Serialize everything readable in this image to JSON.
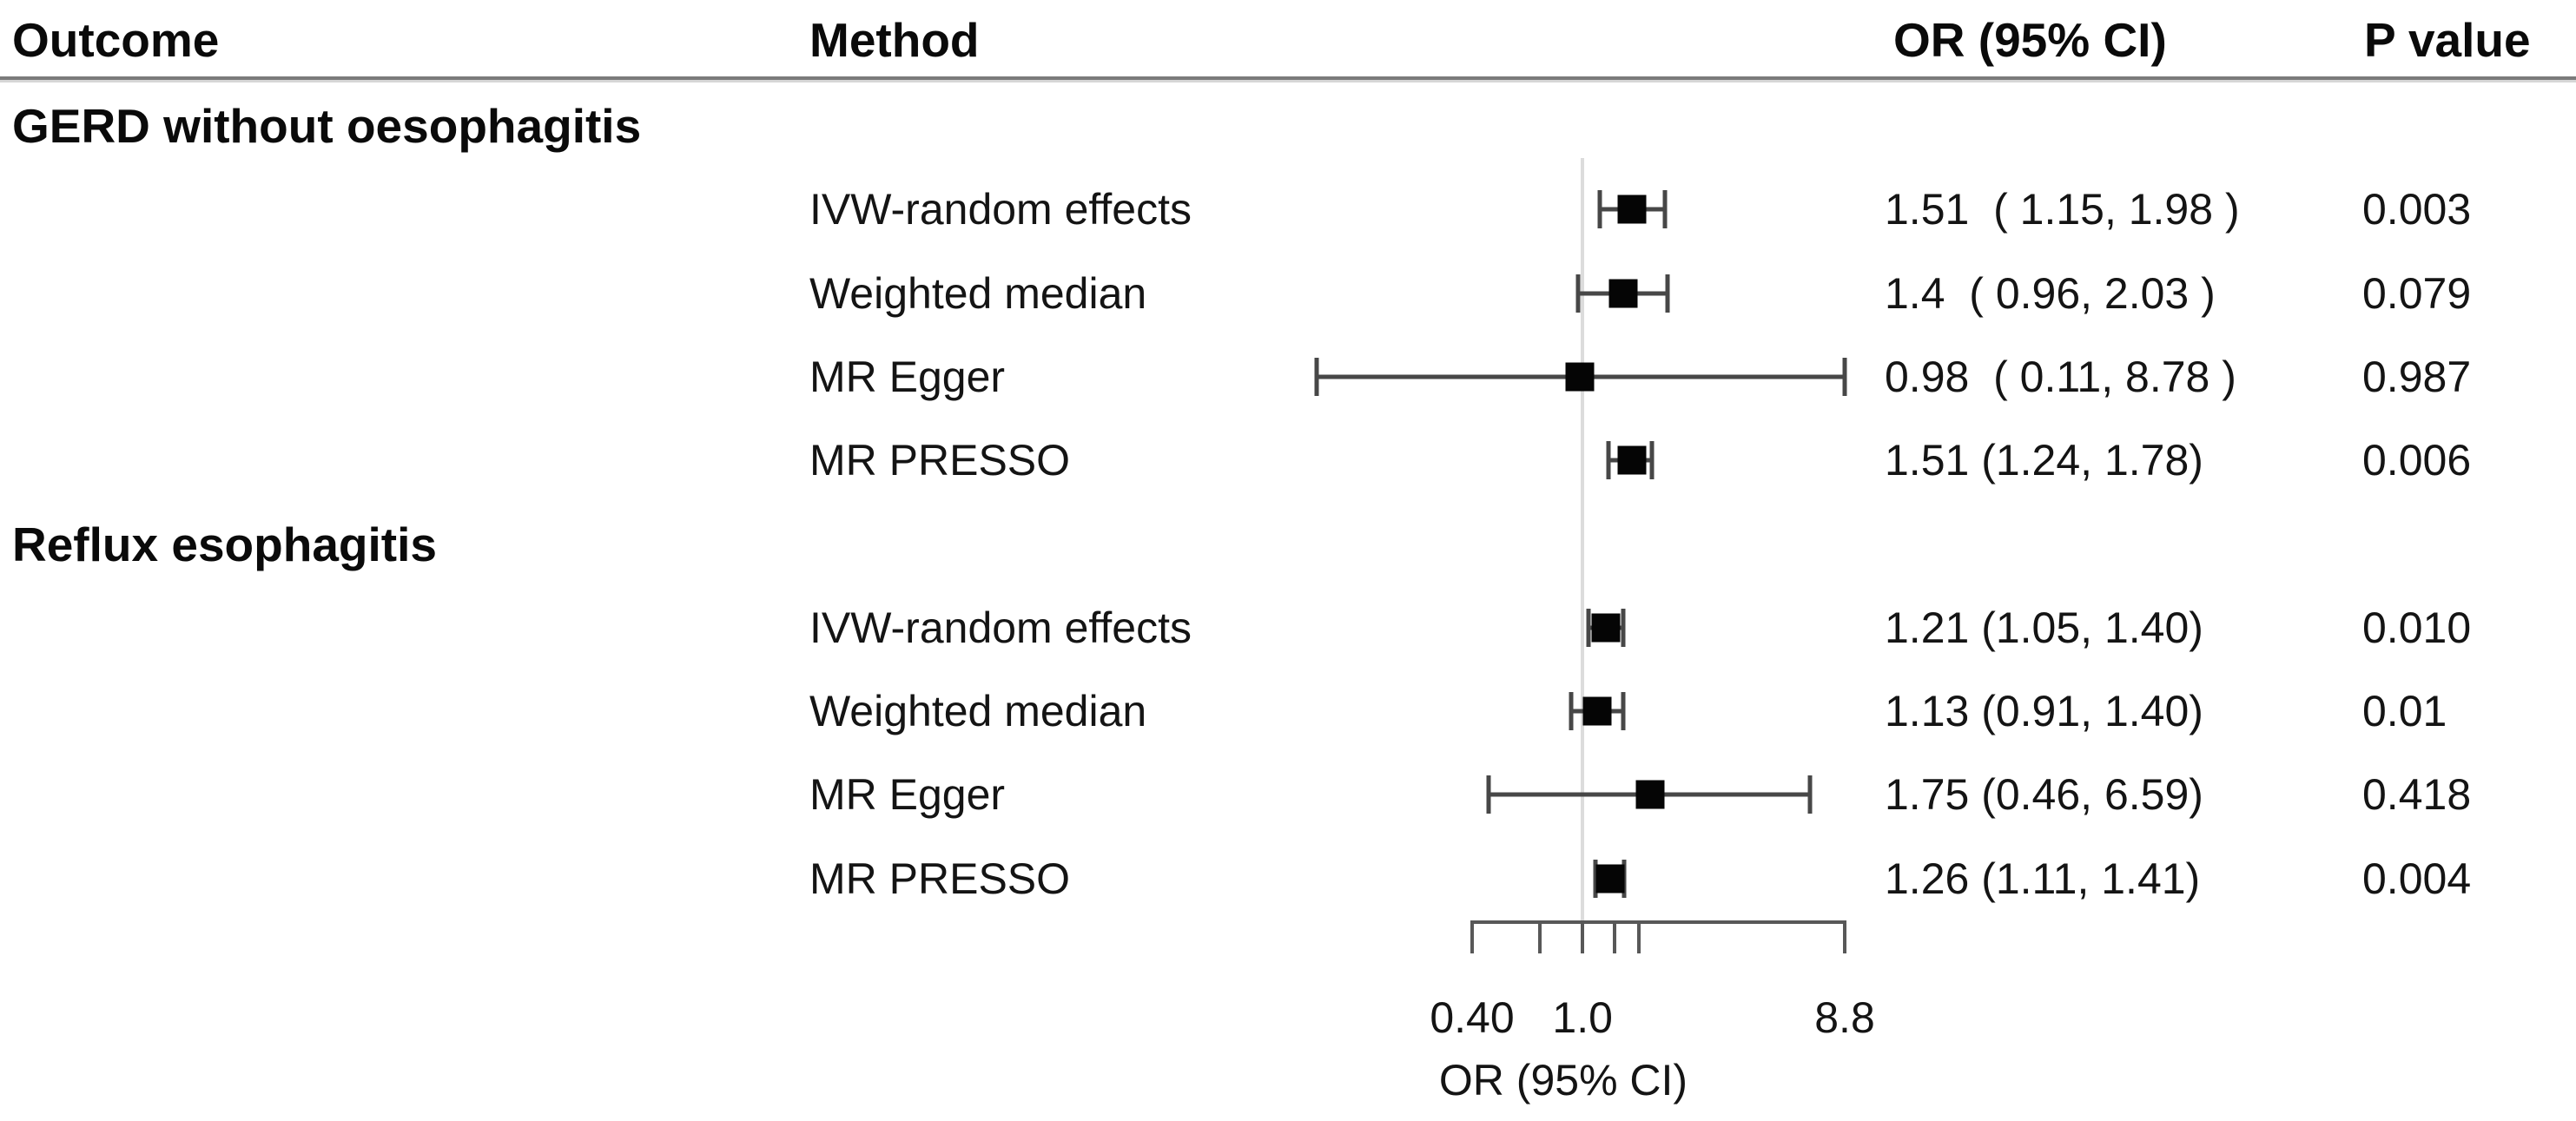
{
  "chart_data": {
    "type": "scatter",
    "variant": "forest-plot",
    "columns": [
      "Outcome",
      "Method",
      "OR (95% CI)",
      "P value"
    ],
    "xlabel": "OR (95% CI)",
    "x_scale": "log",
    "xlim": [
      0.4,
      8.8
    ],
    "reference_line": 1.0,
    "x_ticks": [
      {
        "v": 0.4,
        "label": "0.40"
      },
      {
        "v": 0.7,
        "label": ""
      },
      {
        "v": 1.0,
        "label": "1.0"
      },
      {
        "v": 1.3,
        "label": ""
      },
      {
        "v": 1.6,
        "label": ""
      },
      {
        "v": 8.8,
        "label": "8.8"
      }
    ],
    "groups": [
      {
        "outcome": "GERD without oesophagitis",
        "rows": [
          {
            "method": "IVW-random effects",
            "or": 1.51,
            "ci_low": 1.15,
            "ci_high": 1.98,
            "or_text": "1.51  ( 1.15, 1.98 )",
            "p": "0.003"
          },
          {
            "method": "Weighted median",
            "or": 1.4,
            "ci_low": 0.96,
            "ci_high": 2.03,
            "or_text": "1.4  ( 0.96, 2.03 )",
            "p": "0.079"
          },
          {
            "method": "MR Egger",
            "or": 0.98,
            "ci_low": 0.11,
            "ci_high": 8.78,
            "or_text": "0.98  ( 0.11, 8.78 )",
            "p": "0.987"
          },
          {
            "method": "MR PRESSO",
            "or": 1.51,
            "ci_low": 1.24,
            "ci_high": 1.78,
            "or_text": "1.51 (1.24, 1.78)",
            "p": "0.006"
          }
        ]
      },
      {
        "outcome": "Reflux esophagitis",
        "rows": [
          {
            "method": "IVW-random effects",
            "or": 1.21,
            "ci_low": 1.05,
            "ci_high": 1.4,
            "or_text": "1.21 (1.05, 1.40)",
            "p": "0.010"
          },
          {
            "method": "Weighted median",
            "or": 1.13,
            "ci_low": 0.91,
            "ci_high": 1.4,
            "or_text": "1.13 (0.91, 1.40)",
            "p": "0.01"
          },
          {
            "method": "MR Egger",
            "or": 1.75,
            "ci_low": 0.46,
            "ci_high": 6.59,
            "or_text": "1.75 (0.46, 6.59)",
            "p": "0.418"
          },
          {
            "method": "MR PRESSO",
            "or": 1.26,
            "ci_low": 1.11,
            "ci_high": 1.41,
            "or_text": "1.26 (1.11, 1.41)",
            "p": "0.004"
          }
        ]
      }
    ],
    "colors": {
      "marker": "#050505",
      "whisker": "#474747",
      "reference_line": "#dcdcdc",
      "axis": "#585858",
      "separator": "#7b7b7b",
      "text": "#141414"
    }
  }
}
